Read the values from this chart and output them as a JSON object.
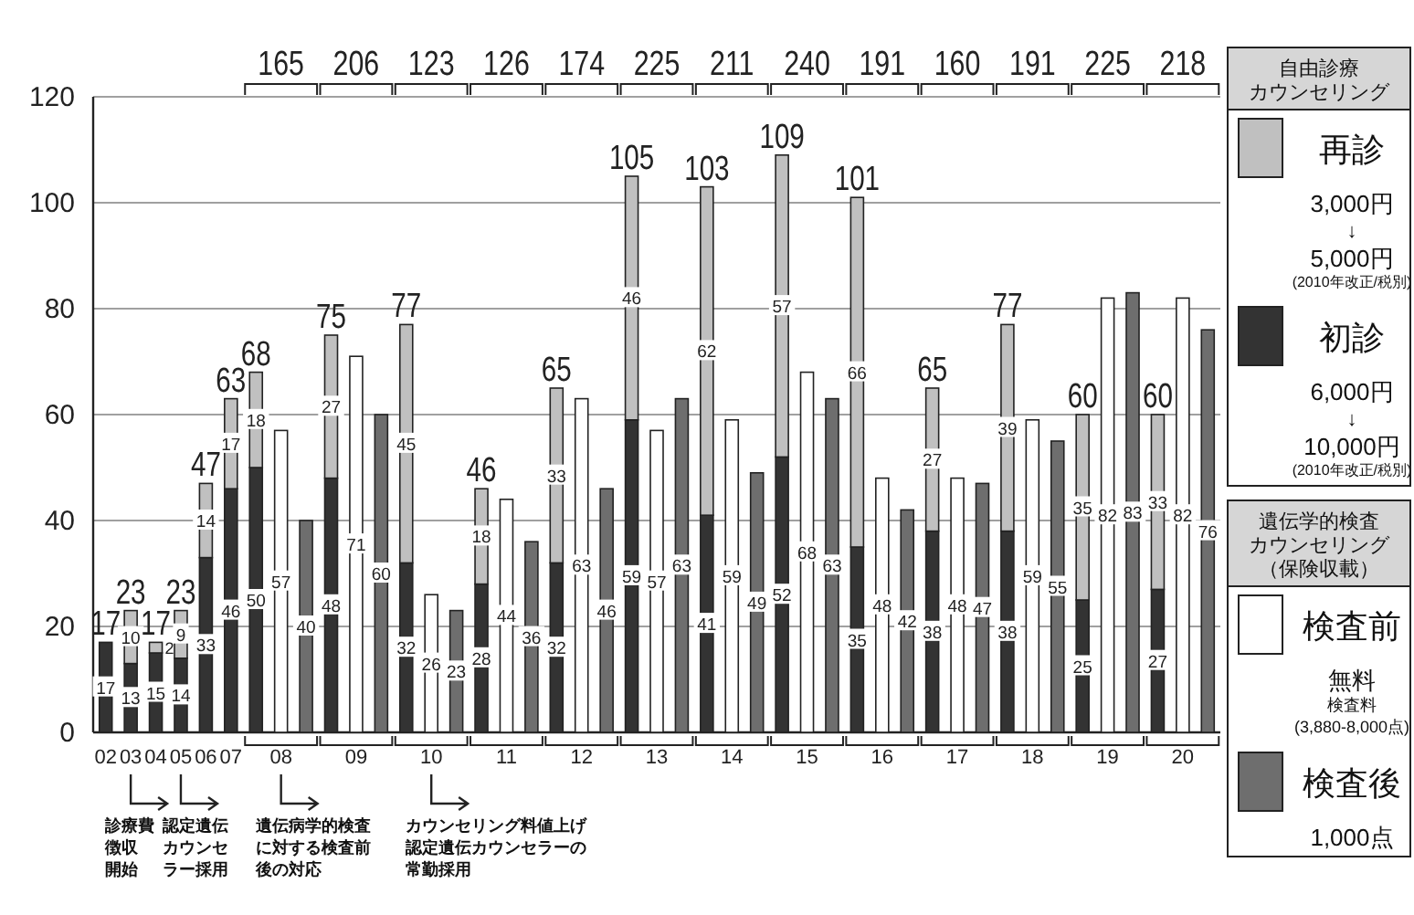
{
  "chart_data": {
    "type": "bar",
    "stacked": true,
    "grid": "y",
    "legend": "right",
    "data_labels": true,
    "ylim": [
      0,
      120
    ],
    "yticks": [
      0,
      20,
      40,
      60,
      80,
      100,
      120
    ],
    "categories": [
      "02",
      "03",
      "04",
      "05",
      "06",
      "07",
      null,
      "08",
      null,
      null,
      "09",
      null,
      null,
      "10",
      null,
      null,
      "11",
      null,
      null,
      "12",
      null,
      null,
      "13",
      null,
      null,
      "14",
      null,
      null,
      "15",
      null,
      null,
      "16",
      null,
      null,
      "17",
      null,
      null,
      "18",
      null,
      null,
      "19",
      null,
      null,
      "20",
      null
    ],
    "series": [
      {
        "name": "初診",
        "color": "#333333",
        "values": [
          17,
          13,
          15,
          14,
          33,
          46,
          50,
          null,
          null,
          48,
          null,
          null,
          32,
          null,
          null,
          28,
          null,
          null,
          32,
          null,
          null,
          59,
          null,
          null,
          41,
          null,
          null,
          52,
          null,
          null,
          35,
          null,
          null,
          38,
          null,
          null,
          38,
          null,
          null,
          25,
          null,
          null,
          27,
          null,
          null
        ]
      },
      {
        "name": "再診",
        "color": "#c0c0c0",
        "values": [
          null,
          10,
          2,
          9,
          14,
          17,
          18,
          null,
          null,
          27,
          null,
          null,
          45,
          null,
          null,
          18,
          null,
          null,
          33,
          null,
          null,
          46,
          null,
          null,
          62,
          null,
          null,
          57,
          null,
          null,
          66,
          null,
          null,
          27,
          null,
          null,
          39,
          null,
          null,
          35,
          null,
          null,
          33,
          null,
          null
        ]
      },
      {
        "name": "検査前",
        "color": "#ffffff",
        "values": [
          null,
          null,
          null,
          null,
          null,
          null,
          null,
          57,
          null,
          null,
          71,
          null,
          null,
          26,
          null,
          null,
          44,
          null,
          null,
          63,
          null,
          null,
          57,
          null,
          null,
          59,
          null,
          null,
          68,
          null,
          null,
          48,
          null,
          null,
          48,
          null,
          null,
          59,
          null,
          null,
          82,
          null,
          null,
          82,
          null
        ]
      },
      {
        "name": "検査後",
        "color": "#6e6e6e",
        "values": [
          null,
          null,
          null,
          null,
          null,
          null,
          null,
          null,
          40,
          null,
          null,
          60,
          null,
          null,
          23,
          null,
          null,
          36,
          null,
          null,
          46,
          null,
          null,
          63,
          null,
          null,
          49,
          null,
          null,
          63,
          null,
          null,
          42,
          null,
          null,
          47,
          null,
          null,
          55,
          null,
          null,
          83,
          null,
          null,
          76
        ]
      }
    ],
    "totals": [
      "17",
      "23",
      "17",
      "23",
      "47",
      "63",
      "68",
      null,
      null,
      "75",
      null,
      null,
      "77",
      null,
      null,
      "46",
      null,
      null,
      "65",
      null,
      null,
      "105",
      null,
      null,
      "103",
      null,
      null,
      "109",
      null,
      null,
      "101",
      null,
      null,
      "65",
      null,
      null,
      "77",
      null,
      null,
      "60",
      null,
      null,
      "60",
      null,
      null
    ],
    "annotations": [
      "165",
      "206",
      "123",
      "126",
      "174",
      "225",
      "211",
      "240",
      "191",
      "160",
      "191",
      "225",
      "218",
      "診療費徴収開始",
      "認定遺伝カウンセラー採用",
      "遺伝病学的検査に対する検査前後の対応",
      "カウンセリング料値上げ認定遺伝カウンセラーの常勤採用",
      "自由診療カウンセリング",
      "3,000円",
      "↓",
      "5,000円",
      "(2010年改正/税別)",
      "6,000円",
      "↓",
      "10,000円",
      "(2010年改正/税別)",
      "遺伝学的検査カウンセリング（保険収載）",
      "無料",
      "検査料",
      "(3,880-8,000点)",
      "1,000点"
    ]
  }
}
